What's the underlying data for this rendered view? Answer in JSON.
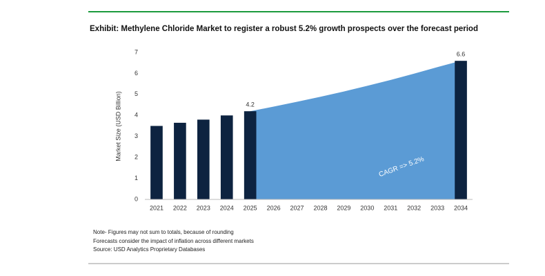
{
  "chart_data": {
    "type": "bar-area",
    "title": "Exhibit: Methylene Chloride Market to register a robust 5.2% growth prospects over the forecast period",
    "y_label": "Market Size (USD Billion)",
    "annotation": "CAGR =>  5.2%",
    "categories": [
      "2021",
      "2022",
      "2023",
      "2024",
      "2025",
      "2026",
      "2027",
      "2028",
      "2029",
      "2030",
      "2031",
      "2032",
      "2033",
      "2034"
    ],
    "series": [
      {
        "type": "bar",
        "color": "#0d2340",
        "values": [
          3.5,
          3.65,
          3.8,
          4.0,
          4.2,
          null,
          null,
          null,
          null,
          null,
          null,
          null,
          null,
          6.6
        ],
        "value_labels": [
          null,
          null,
          null,
          null,
          "4.2",
          null,
          null,
          null,
          null,
          null,
          null,
          null,
          null,
          "6.6"
        ]
      },
      {
        "type": "area",
        "color": "#5b9bd5",
        "values": [
          null,
          null,
          null,
          null,
          4.2,
          4.42,
          4.65,
          4.89,
          5.14,
          5.41,
          5.69,
          5.99,
          6.3,
          6.6
        ]
      }
    ],
    "ylim": [
      0,
      7
    ],
    "yticks": [
      0,
      1,
      2,
      3,
      4,
      5,
      6,
      7
    ],
    "grid": false,
    "notes": [
      "Note- Figures may not sum to totals, because of rounding",
      "Forecasts consider the impact of inflation across different markets",
      "Source: USD Analytics Proprietary Databases"
    ]
  }
}
